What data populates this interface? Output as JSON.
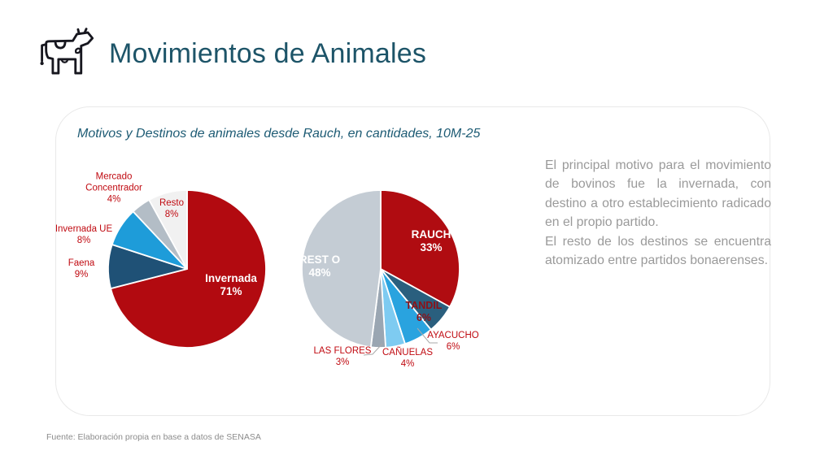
{
  "header": {
    "title": "Movimientos de Animales",
    "icon": "cow-icon"
  },
  "card": {
    "subtitle": "Motivos y Destinos de animales desde Rauch, en cantidades, 10M-25",
    "commentary": {
      "paragraph1": "El principal motivo para el movimiento de bovinos fue la invernada, con destino a otro establecimiento radicado en el propio partido.",
      "paragraph2": "El resto de los destinos se encuentra atomizado entre partidos bonaerenses."
    }
  },
  "chart_data": [
    {
      "type": "pie",
      "name": "motivos",
      "description": "Motivos de movimientos de animales desde Rauch",
      "start_angle_deg": 0,
      "direction": "clockwise",
      "slices": [
        {
          "label": "Invernada",
          "value": 71,
          "color": "#b20a10",
          "label_style": "inside-white"
        },
        {
          "label": "Faena",
          "value": 9,
          "color": "#1f5176",
          "label_style": "outside-red"
        },
        {
          "label": "Invernada UE",
          "value": 8,
          "color": "#1e9cd9",
          "label_style": "outside-red"
        },
        {
          "label": "Mercado Concentrador",
          "value": 4,
          "color": "#b3bdc6",
          "label_style": "outside-red"
        },
        {
          "label": "Resto",
          "value": 8,
          "color": "#f1f1f1",
          "label_style": "outside-red"
        }
      ]
    },
    {
      "type": "pie",
      "name": "destinos",
      "description": "Destinos de animales desde Rauch",
      "start_angle_deg": 0,
      "direction": "clockwise",
      "slices": [
        {
          "label": "RAUCH",
          "value": 33,
          "color": "#b00c11",
          "label_style": "inside-white"
        },
        {
          "label": "TANDIL",
          "value": 6,
          "color": "#2a5f7e",
          "label_style": "inside-darkred"
        },
        {
          "label": "AYACUCHO",
          "value": 6,
          "color": "#29a3df",
          "label_style": "outside-red"
        },
        {
          "label": "CAÑUELAS",
          "value": 4,
          "color": "#7ecbf1",
          "label_style": "outside-red"
        },
        {
          "label": "LAS FLORES",
          "value": 3,
          "color": "#9aa6b2",
          "label_style": "outside-red"
        },
        {
          "label": "REST O",
          "value": 48,
          "color": "#c4ccd4",
          "label_style": "inside-white"
        }
      ]
    }
  ],
  "footer": {
    "source": "Fuente: Elaboración propia en base a datos de SENASA"
  }
}
